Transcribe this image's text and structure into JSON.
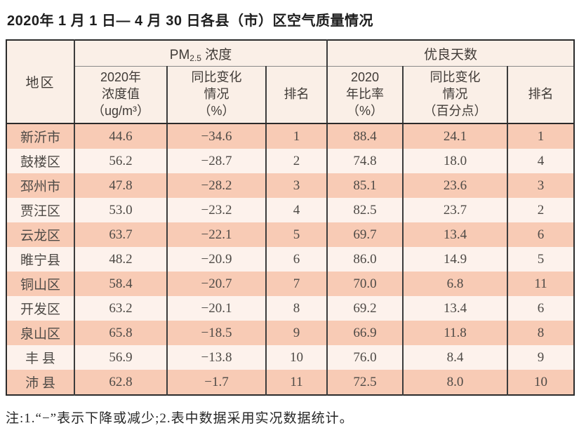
{
  "page": {
    "title": "2020年 1 月 1 日— 4 月 30 日各县（市）区空气质量情况",
    "footnote": "注:1.“−”表示下降或减少;2.表中数据采用实况数据统计。"
  },
  "table": {
    "header": {
      "region": "地区",
      "pm_group_prefix": "PM",
      "pm_group_sub": "2.5",
      "pm_group_suffix": " 浓度",
      "good_days_group": "优良天数",
      "pm_value": "2020年\n浓度值\n（ug/m³）",
      "pm_change": "同比变化\n情况\n（%）",
      "pm_rank": "排名",
      "ratio": "2020\n年比率\n（%）",
      "ratio_change": "同比变化\n情况\n（百分点）",
      "ratio_rank": "排名"
    },
    "rows": [
      {
        "region": "新沂市",
        "pm_value": "44.6",
        "pm_change": "−34.6",
        "pm_rank": "1",
        "ratio": "88.4",
        "ratio_change": "24.1",
        "ratio_rank": "1"
      },
      {
        "region": "鼓楼区",
        "pm_value": "56.2",
        "pm_change": "−28.7",
        "pm_rank": "2",
        "ratio": "74.8",
        "ratio_change": "18.0",
        "ratio_rank": "4"
      },
      {
        "region": "邳州市",
        "pm_value": "47.8",
        "pm_change": "−28.2",
        "pm_rank": "3",
        "ratio": "85.1",
        "ratio_change": "23.6",
        "ratio_rank": "3"
      },
      {
        "region": "贾汪区",
        "pm_value": "53.0",
        "pm_change": "−23.2",
        "pm_rank": "4",
        "ratio": "82.5",
        "ratio_change": "23.7",
        "ratio_rank": "2"
      },
      {
        "region": "云龙区",
        "pm_value": "63.7",
        "pm_change": "−22.1",
        "pm_rank": "5",
        "ratio": "69.7",
        "ratio_change": "13.4",
        "ratio_rank": "6"
      },
      {
        "region": "睢宁县",
        "pm_value": "48.2",
        "pm_change": "−20.9",
        "pm_rank": "6",
        "ratio": "86.0",
        "ratio_change": "14.9",
        "ratio_rank": "5"
      },
      {
        "region": "铜山区",
        "pm_value": "58.4",
        "pm_change": "−20.7",
        "pm_rank": "7",
        "ratio": "70.0",
        "ratio_change": "6.8",
        "ratio_rank": "11"
      },
      {
        "region": "开发区",
        "pm_value": "63.2",
        "pm_change": "−20.1",
        "pm_rank": "8",
        "ratio": "69.2",
        "ratio_change": "13.4",
        "ratio_rank": "6"
      },
      {
        "region": "泉山区",
        "pm_value": "65.8",
        "pm_change": "−18.5",
        "pm_rank": "9",
        "ratio": "66.9",
        "ratio_change": "11.8",
        "ratio_rank": "8"
      },
      {
        "region": "丰 县",
        "pm_value": "56.9",
        "pm_change": "−13.8",
        "pm_rank": "10",
        "ratio": "76.0",
        "ratio_change": "8.4",
        "ratio_rank": "9"
      },
      {
        "region": "沛 县",
        "pm_value": "62.8",
        "pm_change": "−1.7",
        "pm_rank": "11",
        "ratio": "72.5",
        "ratio_change": "8.0",
        "ratio_rank": "10"
      }
    ]
  },
  "colors": {
    "row_band_dark": "#f8cbb5",
    "row_band_light": "#fdf2ec",
    "header_bg": "#faefe7",
    "border_dark": "#2b2b2b",
    "border_inner": "#3c3c3c",
    "body_text": "#4e4a46"
  },
  "chart_data": {
    "type": "table",
    "title": "2020年1月1日—4月30日各县（市）区空气质量情况",
    "column_groups": [
      "地区",
      "PM2.5浓度",
      "优良天数"
    ],
    "columns": [
      "地区",
      "2020年浓度值（ug/m³）",
      "同比变化情况（%）",
      "排名",
      "2020年比率（%）",
      "同比变化情况（百分点）",
      "排名"
    ],
    "rows": [
      [
        "新沂市",
        44.6,
        -34.6,
        1,
        88.4,
        24.1,
        1
      ],
      [
        "鼓楼区",
        56.2,
        -28.7,
        2,
        74.8,
        18.0,
        4
      ],
      [
        "邳州市",
        47.8,
        -28.2,
        3,
        85.1,
        23.6,
        3
      ],
      [
        "贾汪区",
        53.0,
        -23.2,
        4,
        82.5,
        23.7,
        2
      ],
      [
        "云龙区",
        63.7,
        -22.1,
        5,
        69.7,
        13.4,
        6
      ],
      [
        "睢宁县",
        48.2,
        -20.9,
        6,
        86.0,
        14.9,
        5
      ],
      [
        "铜山区",
        58.4,
        -20.7,
        7,
        70.0,
        6.8,
        11
      ],
      [
        "开发区",
        63.2,
        -20.1,
        8,
        69.2,
        13.4,
        6
      ],
      [
        "泉山区",
        65.8,
        -18.5,
        9,
        66.9,
        11.8,
        8
      ],
      [
        "丰县",
        56.9,
        -13.8,
        10,
        76.0,
        8.4,
        9
      ],
      [
        "沛县",
        62.8,
        -1.7,
        11,
        72.5,
        8.0,
        10
      ]
    ],
    "footnote": "注:1.“−”表示下降或减少;2.表中数据采用实况数据统计。"
  }
}
